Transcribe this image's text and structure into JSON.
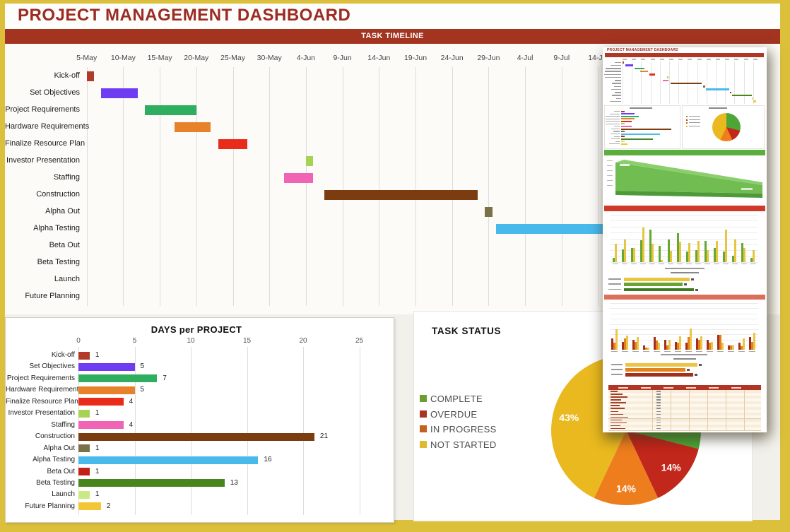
{
  "page": {
    "title": "PROJECT MANAGEMENT DASHBOARD"
  },
  "timeline_header": "TASK TIMELINE",
  "chart_data": [
    {
      "type": "gantt",
      "title": "TASK TIMELINE",
      "axis_dates": [
        "5-May",
        "10-May",
        "15-May",
        "20-May",
        "25-May",
        "30-May",
        "4-Jun",
        "9-Jun",
        "14-Jun",
        "19-Jun",
        "24-Jun",
        "29-Jun",
        "4-Jul",
        "9-Jul",
        "14-Jul"
      ],
      "tick_interval_days": 5,
      "tasks": [
        {
          "name": "Kick-off",
          "start_day": 0,
          "duration": 1,
          "color": "#b23a28"
        },
        {
          "name": "Set Objectives",
          "start_day": 2,
          "duration": 5,
          "color": "#6e3df2"
        },
        {
          "name": "Project Requirements",
          "start_day": 8,
          "duration": 7,
          "color": "#2eae5e"
        },
        {
          "name": "Hardware Requirements",
          "start_day": 12,
          "duration": 5,
          "color": "#e8822a"
        },
        {
          "name": "Finalize Resource Plan",
          "start_day": 18,
          "duration": 4,
          "color": "#e92c1a"
        },
        {
          "name": "Investor Presentation",
          "start_day": 30,
          "duration": 1,
          "color": "#a6d355"
        },
        {
          "name": "Staffing",
          "start_day": 27,
          "duration": 4,
          "color": "#f163b5"
        },
        {
          "name": "Construction",
          "start_day": 32.5,
          "duration": 21,
          "color": "#7b3c10"
        },
        {
          "name": "Alpha Out",
          "start_day": 54.5,
          "duration": 1,
          "color": "#7a7148"
        },
        {
          "name": "Alpha Testing",
          "start_day": 56,
          "duration": 16,
          "color": "#49b9ec"
        },
        {
          "name": "Beta Out",
          "start_day": 72.5,
          "duration": 1,
          "color": "#c32017"
        },
        {
          "name": "Beta Testing",
          "start_day": 74,
          "duration": 13,
          "color": "#47851d"
        },
        {
          "name": "Launch",
          "start_day": 87,
          "duration": 1,
          "color": "#c9ea83"
        },
        {
          "name": "Future Planning",
          "start_day": 88,
          "duration": 2,
          "color": "#f4c534"
        }
      ]
    },
    {
      "type": "bar",
      "title": "DAYS per PROJECT",
      "orientation": "horizontal",
      "categories": [
        "Kick-off",
        "Set Objectives",
        "Project Requirements",
        "Hardware Requirements",
        "Finalize Resource Plan",
        "Investor Presentation",
        "Staffing",
        "Construction",
        "Alpha Out",
        "Alpha Testing",
        "Beta Out",
        "Beta Testing",
        "Launch",
        "Future Planning"
      ],
      "values": [
        1,
        5,
        7,
        5,
        4,
        1,
        4,
        21,
        1,
        16,
        1,
        13,
        1,
        2
      ],
      "colors": [
        "#b23a28",
        "#6e3df2",
        "#2eae5e",
        "#e8822a",
        "#e92c1a",
        "#a6d355",
        "#f163b5",
        "#7b3c10",
        "#7a7148",
        "#49b9ec",
        "#c32017",
        "#47851d",
        "#c9ea83",
        "#f4c534"
      ],
      "xlim": [
        0,
        25
      ],
      "xticks": [
        0,
        5,
        10,
        15,
        20,
        25
      ],
      "grid": true
    },
    {
      "type": "pie",
      "title": "TASK STATUS",
      "labels": [
        "COMPLETE",
        "OVERDUE",
        "IN PROGRESS",
        "NOT STARTED"
      ],
      "values": [
        29,
        14,
        14,
        43
      ],
      "colors": [
        "#4ea636",
        "#c2271b",
        "#ee7d1e",
        "#e9b91f"
      ],
      "slice_labels": [
        "",
        "14%",
        "14%",
        "43%"
      ],
      "legend_colors": [
        "#6f9c30",
        "#aa3423",
        "#c2621c",
        "#dfb92e"
      ],
      "legend_position": "left",
      "start_angle": "top",
      "direction": "clockwise"
    }
  ],
  "preview_overlay": {
    "mini_title": "PROJECT MANAGEMENT DASHBOARD",
    "mini_timeline_header": "TASK TIMELINE",
    "header_colors": {
      "red_bar": "#b03626",
      "green_section": "#5bad3e",
      "columns_section": "#cf3a28",
      "warm_section": "#dc6f5a",
      "table_header": "#b23425"
    },
    "wedge_colors": {
      "top": "#8bcf6d",
      "front": "#72bd52",
      "side": "#4e9a39"
    },
    "columns_green_yellow": {
      "series_colors": [
        "#68a832",
        "#e6c63e"
      ],
      "pairs": [
        [
          0.12,
          0.5
        ],
        [
          0.35,
          0.62
        ],
        [
          0.38,
          0.38
        ],
        [
          0.6,
          0.95
        ],
        [
          0.88,
          0.5
        ],
        [
          0.45,
          0.05
        ],
        [
          0.62,
          0.3
        ],
        [
          0.78,
          0.55
        ],
        [
          0.28,
          0.52
        ],
        [
          0.32,
          0.58
        ],
        [
          0.58,
          0.32
        ],
        [
          0.38,
          0.58
        ],
        [
          0.28,
          0.88
        ],
        [
          0.18,
          0.62
        ],
        [
          0.52,
          0.38
        ],
        [
          0.12,
          0.32
        ]
      ]
    },
    "columns_warm": {
      "series_colors": [
        "#a32f1c",
        "#e0831f",
        "#eec445"
      ],
      "triples": [
        [
          0.5,
          0.3,
          0.9
        ],
        [
          0.35,
          0.5,
          0.62
        ],
        [
          0.45,
          0.35,
          0.55
        ],
        [
          0.2,
          0.08,
          0.08
        ],
        [
          0.55,
          0.4,
          0.3
        ],
        [
          0.45,
          0.2,
          0.45
        ],
        [
          0.35,
          0.3,
          0.6
        ],
        [
          0.3,
          0.55,
          0.95
        ],
        [
          0.5,
          0.45,
          0.6
        ],
        [
          0.45,
          0.3,
          0.35
        ],
        [
          0.65,
          0.65,
          0.3
        ],
        [
          0.2,
          0.2,
          0.2
        ],
        [
          0.3,
          0.15,
          0.5
        ],
        [
          0.55,
          0.35,
          0.75
        ]
      ]
    },
    "hbars_a": [
      {
        "color": "#e8c53e",
        "frac": 0.62
      },
      {
        "color": "#6aa32f",
        "frac": 0.55
      },
      {
        "color": "#3f7a1f",
        "frac": 0.66
      }
    ],
    "hbars_b": [
      {
        "color": "#eec445",
        "frac": 0.66
      },
      {
        "color": "#e0831f",
        "frac": 0.55
      },
      {
        "color": "#a32f1c",
        "frac": 0.62
      }
    ],
    "mini_pie": {
      "colors": [
        "#4ea636",
        "#c2271b",
        "#ee7d1e",
        "#e9b91f"
      ],
      "values": [
        29,
        14,
        14,
        43
      ]
    },
    "table": {
      "rows": 14,
      "row_colors": [
        "#f8edda",
        "#fdf7ee"
      ],
      "border_color": "#e3cba6"
    }
  }
}
